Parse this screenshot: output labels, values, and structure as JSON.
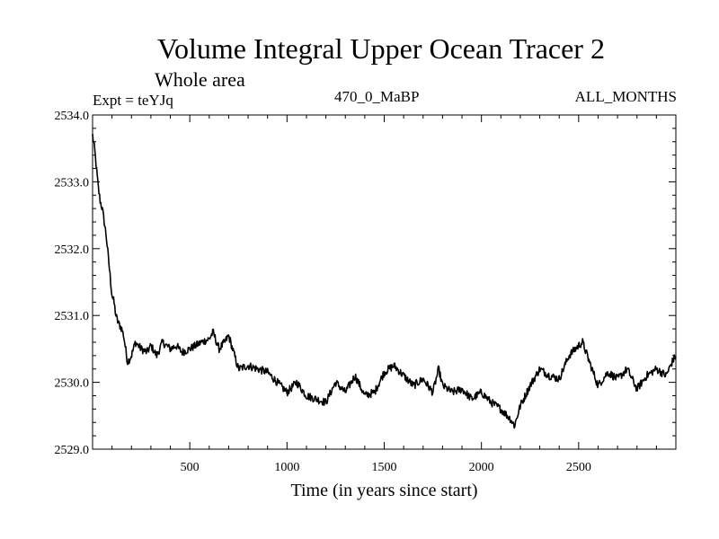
{
  "header": {
    "title": "Volume Integral Upper Ocean Tracer 2",
    "subtitle": "Whole area",
    "expt": "Expt = teYJq",
    "period": "470_0_MaBP",
    "months": "ALL_MONTHS"
  },
  "chart_data": {
    "type": "line",
    "title": "Volume Integral Upper Ocean Tracer 2",
    "subtitle": "Whole area",
    "xlabel": "Time (in years since start)",
    "ylabel": "",
    "xlim": [
      0,
      3000
    ],
    "ylim": [
      2529.0,
      2534.0
    ],
    "x_ticks": [
      500,
      1000,
      1500,
      2000,
      2500
    ],
    "x_tick_labels": [
      "500",
      "1000",
      "1500",
      "2000",
      "2500"
    ],
    "y_ticks": [
      2529.0,
      2530.0,
      2531.0,
      2532.0,
      2533.0,
      2534.0
    ],
    "y_tick_labels": [
      "2529.0",
      "2530.0",
      "2531.0",
      "2532.0",
      "2533.0",
      "2534.0"
    ],
    "grid": false,
    "series": [
      {
        "name": "Tracer 2",
        "x": [
          0,
          10,
          20,
          30,
          40,
          50,
          60,
          70,
          80,
          90,
          100,
          110,
          120,
          130,
          140,
          150,
          160,
          170,
          180,
          200,
          220,
          250,
          280,
          300,
          330,
          360,
          400,
          430,
          460,
          500,
          530,
          560,
          600,
          620,
          650,
          680,
          700,
          720,
          750,
          800,
          850,
          900,
          950,
          1000,
          1050,
          1100,
          1150,
          1200,
          1250,
          1300,
          1350,
          1400,
          1450,
          1500,
          1550,
          1600,
          1650,
          1700,
          1750,
          1780,
          1800,
          1850,
          1900,
          1950,
          2000,
          2050,
          2100,
          2150,
          2170,
          2200,
          2250,
          2300,
          2350,
          2400,
          2450,
          2500,
          2520,
          2550,
          2600,
          2650,
          2700,
          2750,
          2800,
          2850,
          2900,
          2950,
          2980,
          3000
        ],
        "values": [
          2533.7,
          2533.5,
          2533.2,
          2532.9,
          2532.7,
          2532.6,
          2532.4,
          2532.2,
          2531.9,
          2531.6,
          2531.3,
          2531.2,
          2531.0,
          2530.9,
          2530.85,
          2530.8,
          2530.7,
          2530.5,
          2530.3,
          2530.4,
          2530.6,
          2530.5,
          2530.45,
          2530.55,
          2530.4,
          2530.6,
          2530.5,
          2530.55,
          2530.45,
          2530.5,
          2530.55,
          2530.6,
          2530.65,
          2530.75,
          2530.5,
          2530.6,
          2530.7,
          2530.5,
          2530.2,
          2530.25,
          2530.2,
          2530.15,
          2530.0,
          2529.85,
          2530.0,
          2529.8,
          2529.75,
          2529.7,
          2530.0,
          2529.85,
          2530.1,
          2529.8,
          2529.85,
          2530.15,
          2530.25,
          2530.1,
          2529.95,
          2530.05,
          2529.85,
          2530.2,
          2529.95,
          2529.85,
          2529.9,
          2529.75,
          2529.85,
          2529.7,
          2529.6,
          2529.45,
          2529.35,
          2529.65,
          2529.95,
          2530.2,
          2530.1,
          2530.05,
          2530.4,
          2530.55,
          2530.6,
          2530.35,
          2529.95,
          2530.15,
          2530.05,
          2530.2,
          2529.9,
          2530.1,
          2530.2,
          2530.1,
          2530.3,
          2530.4
        ]
      }
    ]
  }
}
